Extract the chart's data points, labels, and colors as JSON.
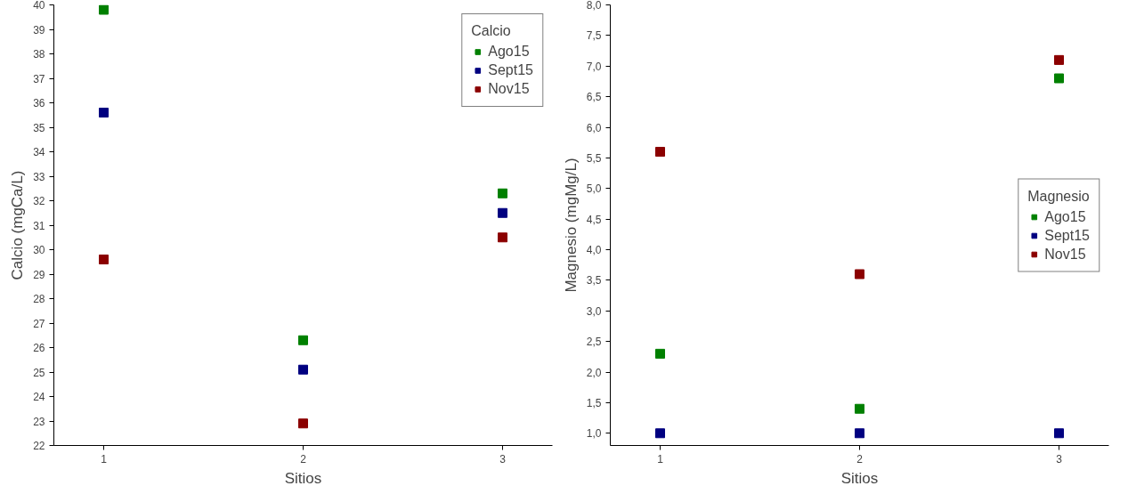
{
  "chart_data": [
    {
      "type": "scatter",
      "xlabel": "Sitios",
      "ylabel": "Calcio (mgCa/L)",
      "legend_title": "Calcio",
      "x": [
        1,
        2,
        3
      ],
      "xlim": [
        0.75,
        3.25
      ],
      "xticks": [
        1,
        2,
        3
      ],
      "ylim": [
        22,
        40
      ],
      "yticks": [
        22,
        23,
        24,
        25,
        26,
        27,
        28,
        29,
        30,
        31,
        32,
        33,
        34,
        35,
        36,
        37,
        38,
        39,
        40
      ],
      "marker": "square",
      "legend": "top right",
      "grid": false,
      "series": [
        {
          "name": "Ago15",
          "color": "#008000",
          "values": [
            39.8,
            26.3,
            32.3
          ]
        },
        {
          "name": "Sept15",
          "color": "#000080",
          "values": [
            35.6,
            25.1,
            31.5
          ]
        },
        {
          "name": "Nov15",
          "color": "#8b0000",
          "values": [
            29.6,
            22.9,
            30.5
          ]
        }
      ]
    },
    {
      "type": "scatter",
      "xlabel": "Sitios",
      "ylabel": "Magnesio (mgMg/L)",
      "legend_title": "Magnesio",
      "x": [
        1,
        2,
        3
      ],
      "xlim": [
        0.75,
        3.25
      ],
      "xticks": [
        1,
        2,
        3
      ],
      "ylim": [
        0.8,
        8.0
      ],
      "yticks": [
        {
          "value": 1.0,
          "label": "1,0"
        },
        {
          "value": 1.5,
          "label": "1,5"
        },
        {
          "value": 2.0,
          "label": "2,0"
        },
        {
          "value": 2.5,
          "label": "2,5"
        },
        {
          "value": 3.0,
          "label": "3,0"
        },
        {
          "value": 3.5,
          "label": "3,5"
        },
        {
          "value": 4.0,
          "label": "4,0"
        },
        {
          "value": 4.5,
          "label": "4,5"
        },
        {
          "value": 5.0,
          "label": "5,0"
        },
        {
          "value": 5.5,
          "label": "5,5"
        },
        {
          "value": 6.0,
          "label": "6,0"
        },
        {
          "value": 6.5,
          "label": "6,5"
        },
        {
          "value": 7.0,
          "label": "7,0"
        },
        {
          "value": 7.5,
          "label": "7,5"
        },
        {
          "value": 8.0,
          "label": "8,0"
        }
      ],
      "marker": "square",
      "legend": "right",
      "grid": false,
      "series": [
        {
          "name": "Ago15",
          "color": "#008000",
          "values": [
            2.3,
            1.4,
            6.8
          ]
        },
        {
          "name": "Sept15",
          "color": "#000080",
          "values": [
            1.0,
            1.0,
            1.0
          ]
        },
        {
          "name": "Nov15",
          "color": "#8b0000",
          "values": [
            5.6,
            3.6,
            7.1
          ]
        }
      ]
    }
  ]
}
